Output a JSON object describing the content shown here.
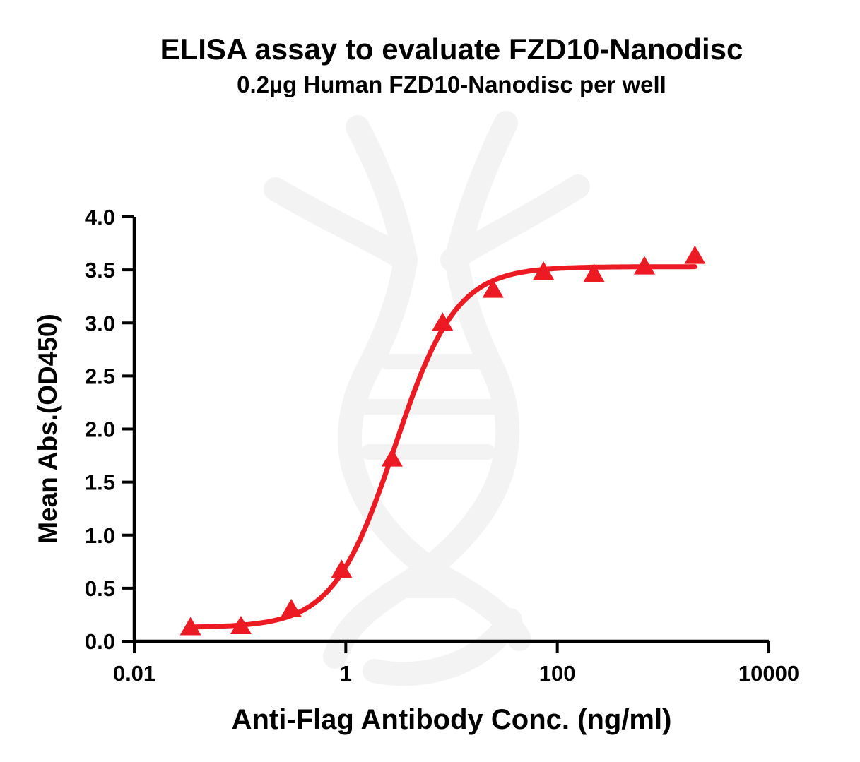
{
  "figure": {
    "title": "ELISA assay to evaluate FZD10-Nanodisc",
    "subtitle": "0.2µg Human FZD10-Nanodisc per well"
  },
  "chart_data": {
    "type": "scatter",
    "title": "ELISA assay to evaluate FZD10-Nanodisc",
    "subtitle": "0.2µg Human FZD10-Nanodisc per well",
    "xlabel": "Anti-Flag Antibody Conc. (ng/ml)",
    "ylabel": "Mean Abs.(OD450)",
    "x_scale": "log10",
    "xlim": [
      0.01,
      10000
    ],
    "ylim": [
      0,
      4
    ],
    "x_tick_values": [
      0.01,
      1,
      100,
      10000
    ],
    "x_tick_labels": [
      "0.01",
      "1",
      "100",
      "10000"
    ],
    "y_tick_values": [
      0,
      0.5,
      1,
      1.5,
      2,
      2.5,
      3,
      3.5,
      4
    ],
    "y_tick_labels": [
      "0.0",
      "0.5",
      "1.0",
      "1.5",
      "2.0",
      "2.5",
      "3.0",
      "3.5",
      "4.0"
    ],
    "grid": false,
    "legend": false,
    "series": [
      {
        "name": "Human FZD10-Nanodisc",
        "marker": "triangle-up",
        "color": "#EC1B23",
        "points": [
          {
            "x": 0.034,
            "y": 0.13
          },
          {
            "x": 0.102,
            "y": 0.14
          },
          {
            "x": 0.305,
            "y": 0.3
          },
          {
            "x": 0.914,
            "y": 0.67
          },
          {
            "x": 2.74,
            "y": 1.72
          },
          {
            "x": 8.23,
            "y": 3.0
          },
          {
            "x": 24.7,
            "y": 3.31
          },
          {
            "x": 74.1,
            "y": 3.48
          },
          {
            "x": 222,
            "y": 3.46
          },
          {
            "x": 667,
            "y": 3.53
          },
          {
            "x": 2000,
            "y": 3.63
          }
        ]
      }
    ],
    "fit_curve": {
      "model": "4PL",
      "bottom": 0.13,
      "top": 3.53,
      "ec50": 2.9,
      "hill": 1.5,
      "x_start": 0.034,
      "x_end": 2000,
      "color": "#EC1B23"
    }
  },
  "colors": {
    "curve": "#EC1B23",
    "axis": "#000000",
    "text": "#000000",
    "watermark": "#f3f3f3",
    "background": "#ffffff"
  }
}
